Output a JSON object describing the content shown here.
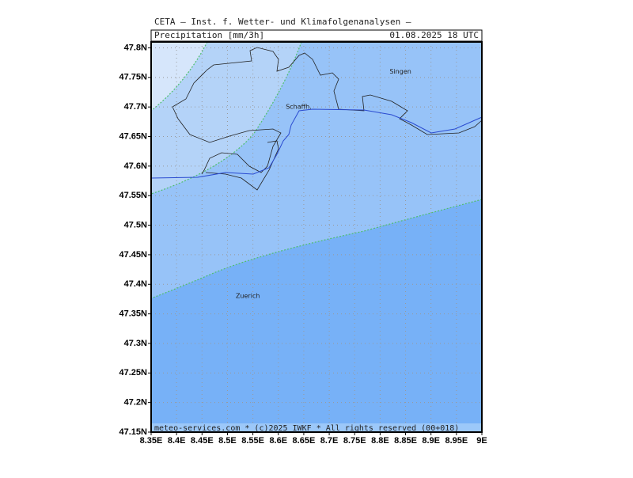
{
  "header": {
    "title": "CETA – Inst. f. Wetter- und Klimafolgenanalysen –",
    "variable": "Precipitation [mm/3h]",
    "valid_time": "01.08.2025 18 UTC"
  },
  "footer": "meteo-services.com * (c)2025 IWKF * All rights reserved (00+018)",
  "places": [
    {
      "label": "Singen",
      "lon": 8.84,
      "lat": 47.76
    },
    {
      "label": "Schaffh.",
      "lon": 8.64,
      "lat": 47.7
    },
    {
      "label": "Zuerich",
      "lon": 8.54,
      "lat": 47.38
    }
  ],
  "map": {
    "xlim": [
      8.35,
      9.0
    ],
    "ylim": [
      47.15,
      47.81
    ],
    "xticks": [
      {
        "value": 8.35,
        "label": "8.35E"
      },
      {
        "value": 8.4,
        "label": "8.4E"
      },
      {
        "value": 8.45,
        "label": "8.45E"
      },
      {
        "value": 8.5,
        "label": "8.5E"
      },
      {
        "value": 8.55,
        "label": "8.55E"
      },
      {
        "value": 8.6,
        "label": "8.6E"
      },
      {
        "value": 8.65,
        "label": "8.65E"
      },
      {
        "value": 8.7,
        "label": "8.7E"
      },
      {
        "value": 8.75,
        "label": "8.75E"
      },
      {
        "value": 8.8,
        "label": "8.8E"
      },
      {
        "value": 8.85,
        "label": "8.85E"
      },
      {
        "value": 8.9,
        "label": "8.9E"
      },
      {
        "value": 8.95,
        "label": "8.95E"
      },
      {
        "value": 9.0,
        "label": "9E"
      }
    ],
    "yticks": [
      {
        "value": 47.15,
        "label": "47.15N"
      },
      {
        "value": 47.2,
        "label": "47.2N"
      },
      {
        "value": 47.25,
        "label": "47.25N"
      },
      {
        "value": 47.3,
        "label": "47.3N"
      },
      {
        "value": 47.35,
        "label": "47.35N"
      },
      {
        "value": 47.4,
        "label": "47.4N"
      },
      {
        "value": 47.45,
        "label": "47.45N"
      },
      {
        "value": 47.5,
        "label": "47.5N"
      },
      {
        "value": 47.55,
        "label": "47.55N"
      },
      {
        "value": 47.6,
        "label": "47.6N"
      },
      {
        "value": 47.65,
        "label": "47.65N"
      },
      {
        "value": 47.7,
        "label": "47.7N"
      },
      {
        "value": 47.75,
        "label": "47.75N"
      },
      {
        "value": 47.8,
        "label": "47.8N"
      }
    ],
    "grid": true
  }
}
